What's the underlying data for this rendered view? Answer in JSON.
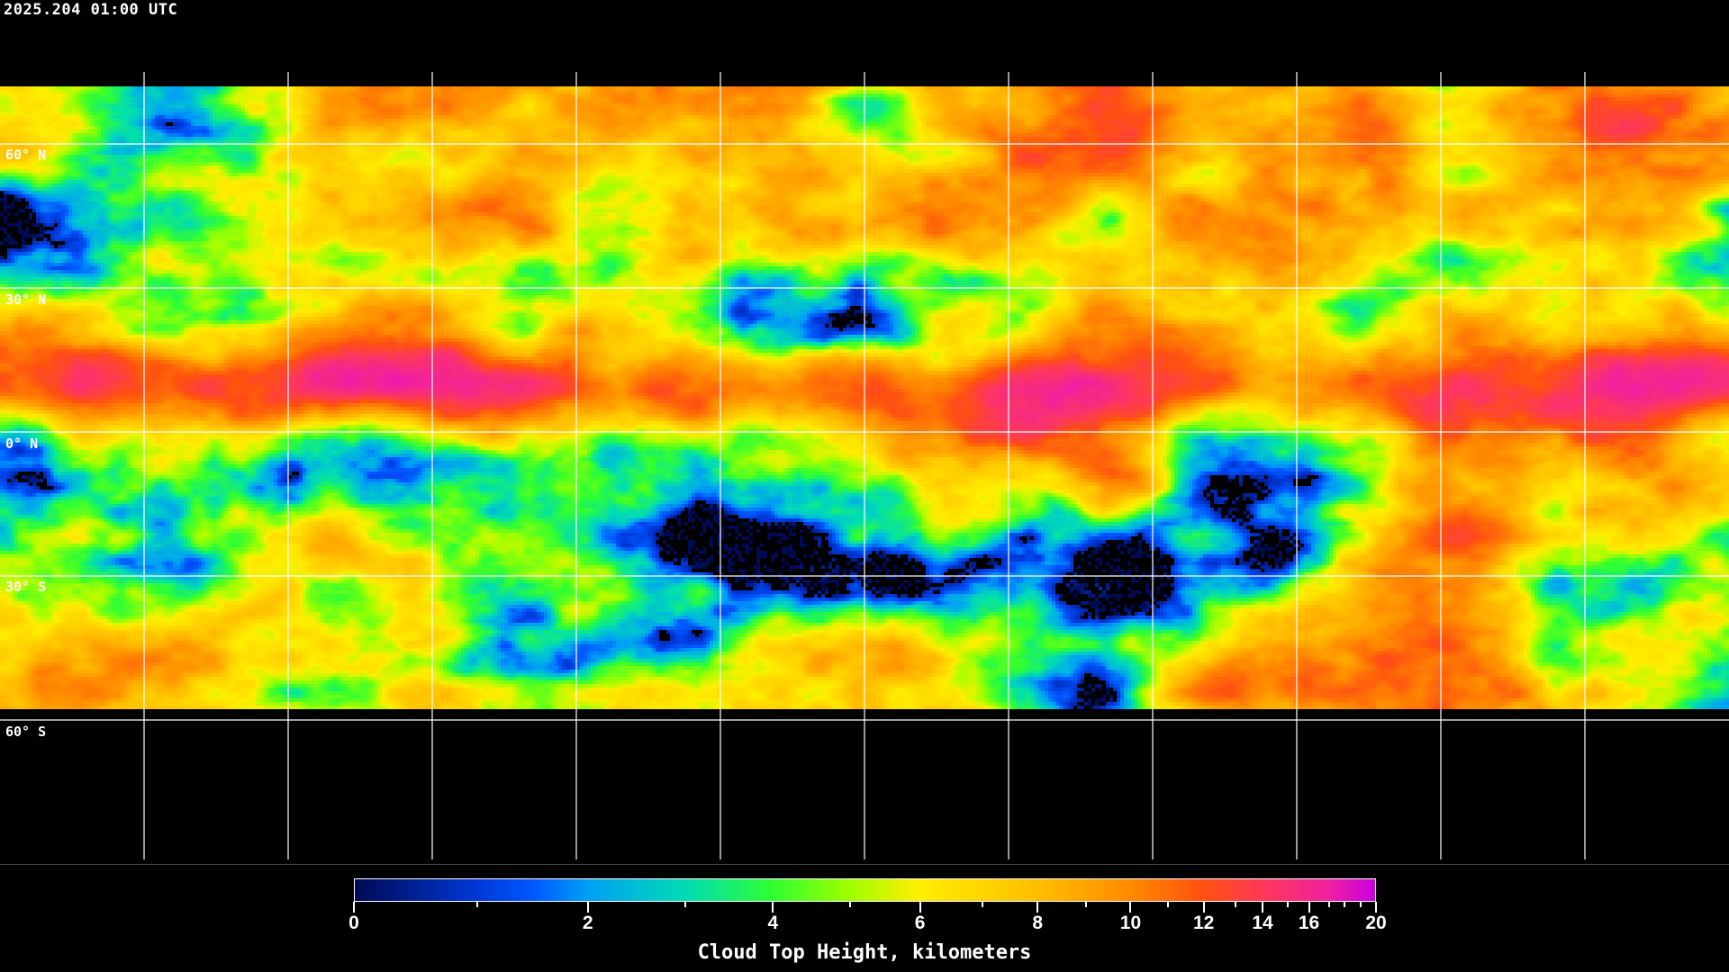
{
  "header": {
    "timestamp": "2025.204 01:00 UTC"
  },
  "map": {
    "projection": "equirectangular",
    "grid_spacing_degrees": 30,
    "grid_color": "#ffffff",
    "coastline_color": "#ffffff",
    "latitude_labels": [
      "60° N",
      "30° N",
      "0° N",
      "30° S",
      "60° S"
    ]
  },
  "colorbar": {
    "title": "Cloud Top Height, kilometers",
    "range": [
      0,
      20
    ],
    "tick_values": [
      0,
      1,
      2,
      3,
      4,
      5,
      6,
      7,
      8,
      9,
      10,
      11,
      12,
      13,
      14,
      15,
      16,
      17,
      18,
      19,
      20
    ],
    "tick_labels": [
      "0",
      "2",
      "4",
      "6",
      "8",
      "10",
      "12",
      "14",
      "16",
      "20"
    ],
    "labeled_values": [
      0,
      2,
      4,
      6,
      8,
      10,
      12,
      14,
      16,
      20
    ],
    "color_stops": [
      {
        "value": 0,
        "color": "#000a55"
      },
      {
        "value": 1,
        "color": "#0038d8"
      },
      {
        "value": 1.5,
        "color": "#0058ff"
      },
      {
        "value": 2,
        "color": "#00a0f4"
      },
      {
        "value": 3,
        "color": "#00dcb4"
      },
      {
        "value": 4,
        "color": "#30ff30"
      },
      {
        "value": 5,
        "color": "#a0ff00"
      },
      {
        "value": 6,
        "color": "#ffee00"
      },
      {
        "value": 8,
        "color": "#ffbe00"
      },
      {
        "value": 10,
        "color": "#ff8a00"
      },
      {
        "value": 12,
        "color": "#ff5010"
      },
      {
        "value": 14,
        "color": "#ff3858"
      },
      {
        "value": 17,
        "color": "#f020a0"
      },
      {
        "value": 20,
        "color": "#c800e0"
      }
    ]
  }
}
